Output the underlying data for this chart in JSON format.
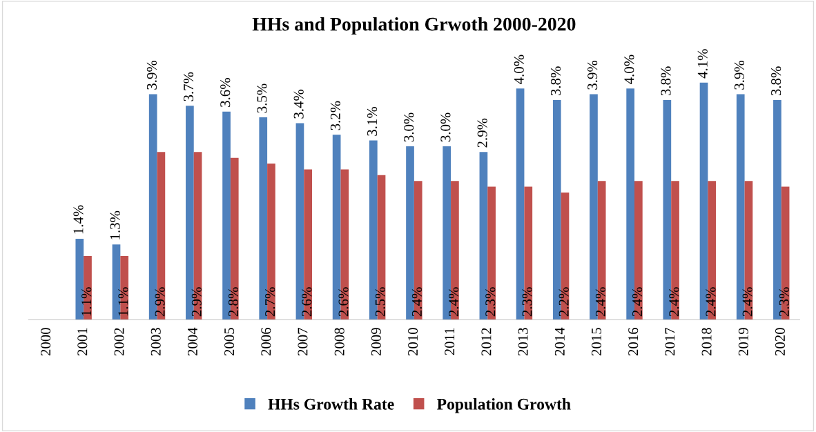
{
  "chart_data": {
    "type": "bar",
    "title": "HHs and Population Grwoth 2000-2020",
    "categories": [
      "2000",
      "2001",
      "2002",
      "2003",
      "2004",
      "2005",
      "2006",
      "2007",
      "2008",
      "2009",
      "2010",
      "2011",
      "2012",
      "2013",
      "2014",
      "2015",
      "2016",
      "2017",
      "2018",
      "2019",
      "2020"
    ],
    "series": [
      {
        "name": "HHs Growth Rate",
        "color": "#4f81bd",
        "values": [
          null,
          1.4,
          1.3,
          3.9,
          3.7,
          3.6,
          3.5,
          3.4,
          3.2,
          3.1,
          3.0,
          3.0,
          2.9,
          4.0,
          3.8,
          3.9,
          4.0,
          3.8,
          4.1,
          3.9,
          3.8
        ],
        "value_labels": [
          null,
          "1.4%",
          "1.3%",
          "3.9%",
          "3.7%",
          "3.6%",
          "3.5%",
          "3.4%",
          "3.2%",
          "3.1%",
          "3.0%",
          "3.0%",
          "2.9%",
          "4.0%",
          "3.8%",
          "3.9%",
          "4.0%",
          "3.8%",
          "4.1%",
          "3.9%",
          "3.8%"
        ]
      },
      {
        "name": "Population Growth",
        "color": "#c0504d",
        "values": [
          null,
          1.1,
          1.1,
          2.9,
          2.9,
          2.8,
          2.7,
          2.6,
          2.6,
          2.5,
          2.4,
          2.4,
          2.3,
          2.3,
          2.2,
          2.4,
          2.4,
          2.4,
          2.4,
          2.4,
          2.3
        ],
        "value_labels": [
          null,
          "1.1%",
          "1.1%",
          "2.9%",
          "2.9%",
          "2.8%",
          "2.7%",
          "2.6%",
          "2.6%",
          "2.5%",
          "2.4%",
          "2.4%",
          "2.3%",
          "2.3%",
          "2.2%",
          "2.4%",
          "2.4%",
          "2.4%",
          "2.4%",
          "2.4%",
          "2.3%"
        ]
      }
    ],
    "legend": "bottom",
    "grid": false
  }
}
